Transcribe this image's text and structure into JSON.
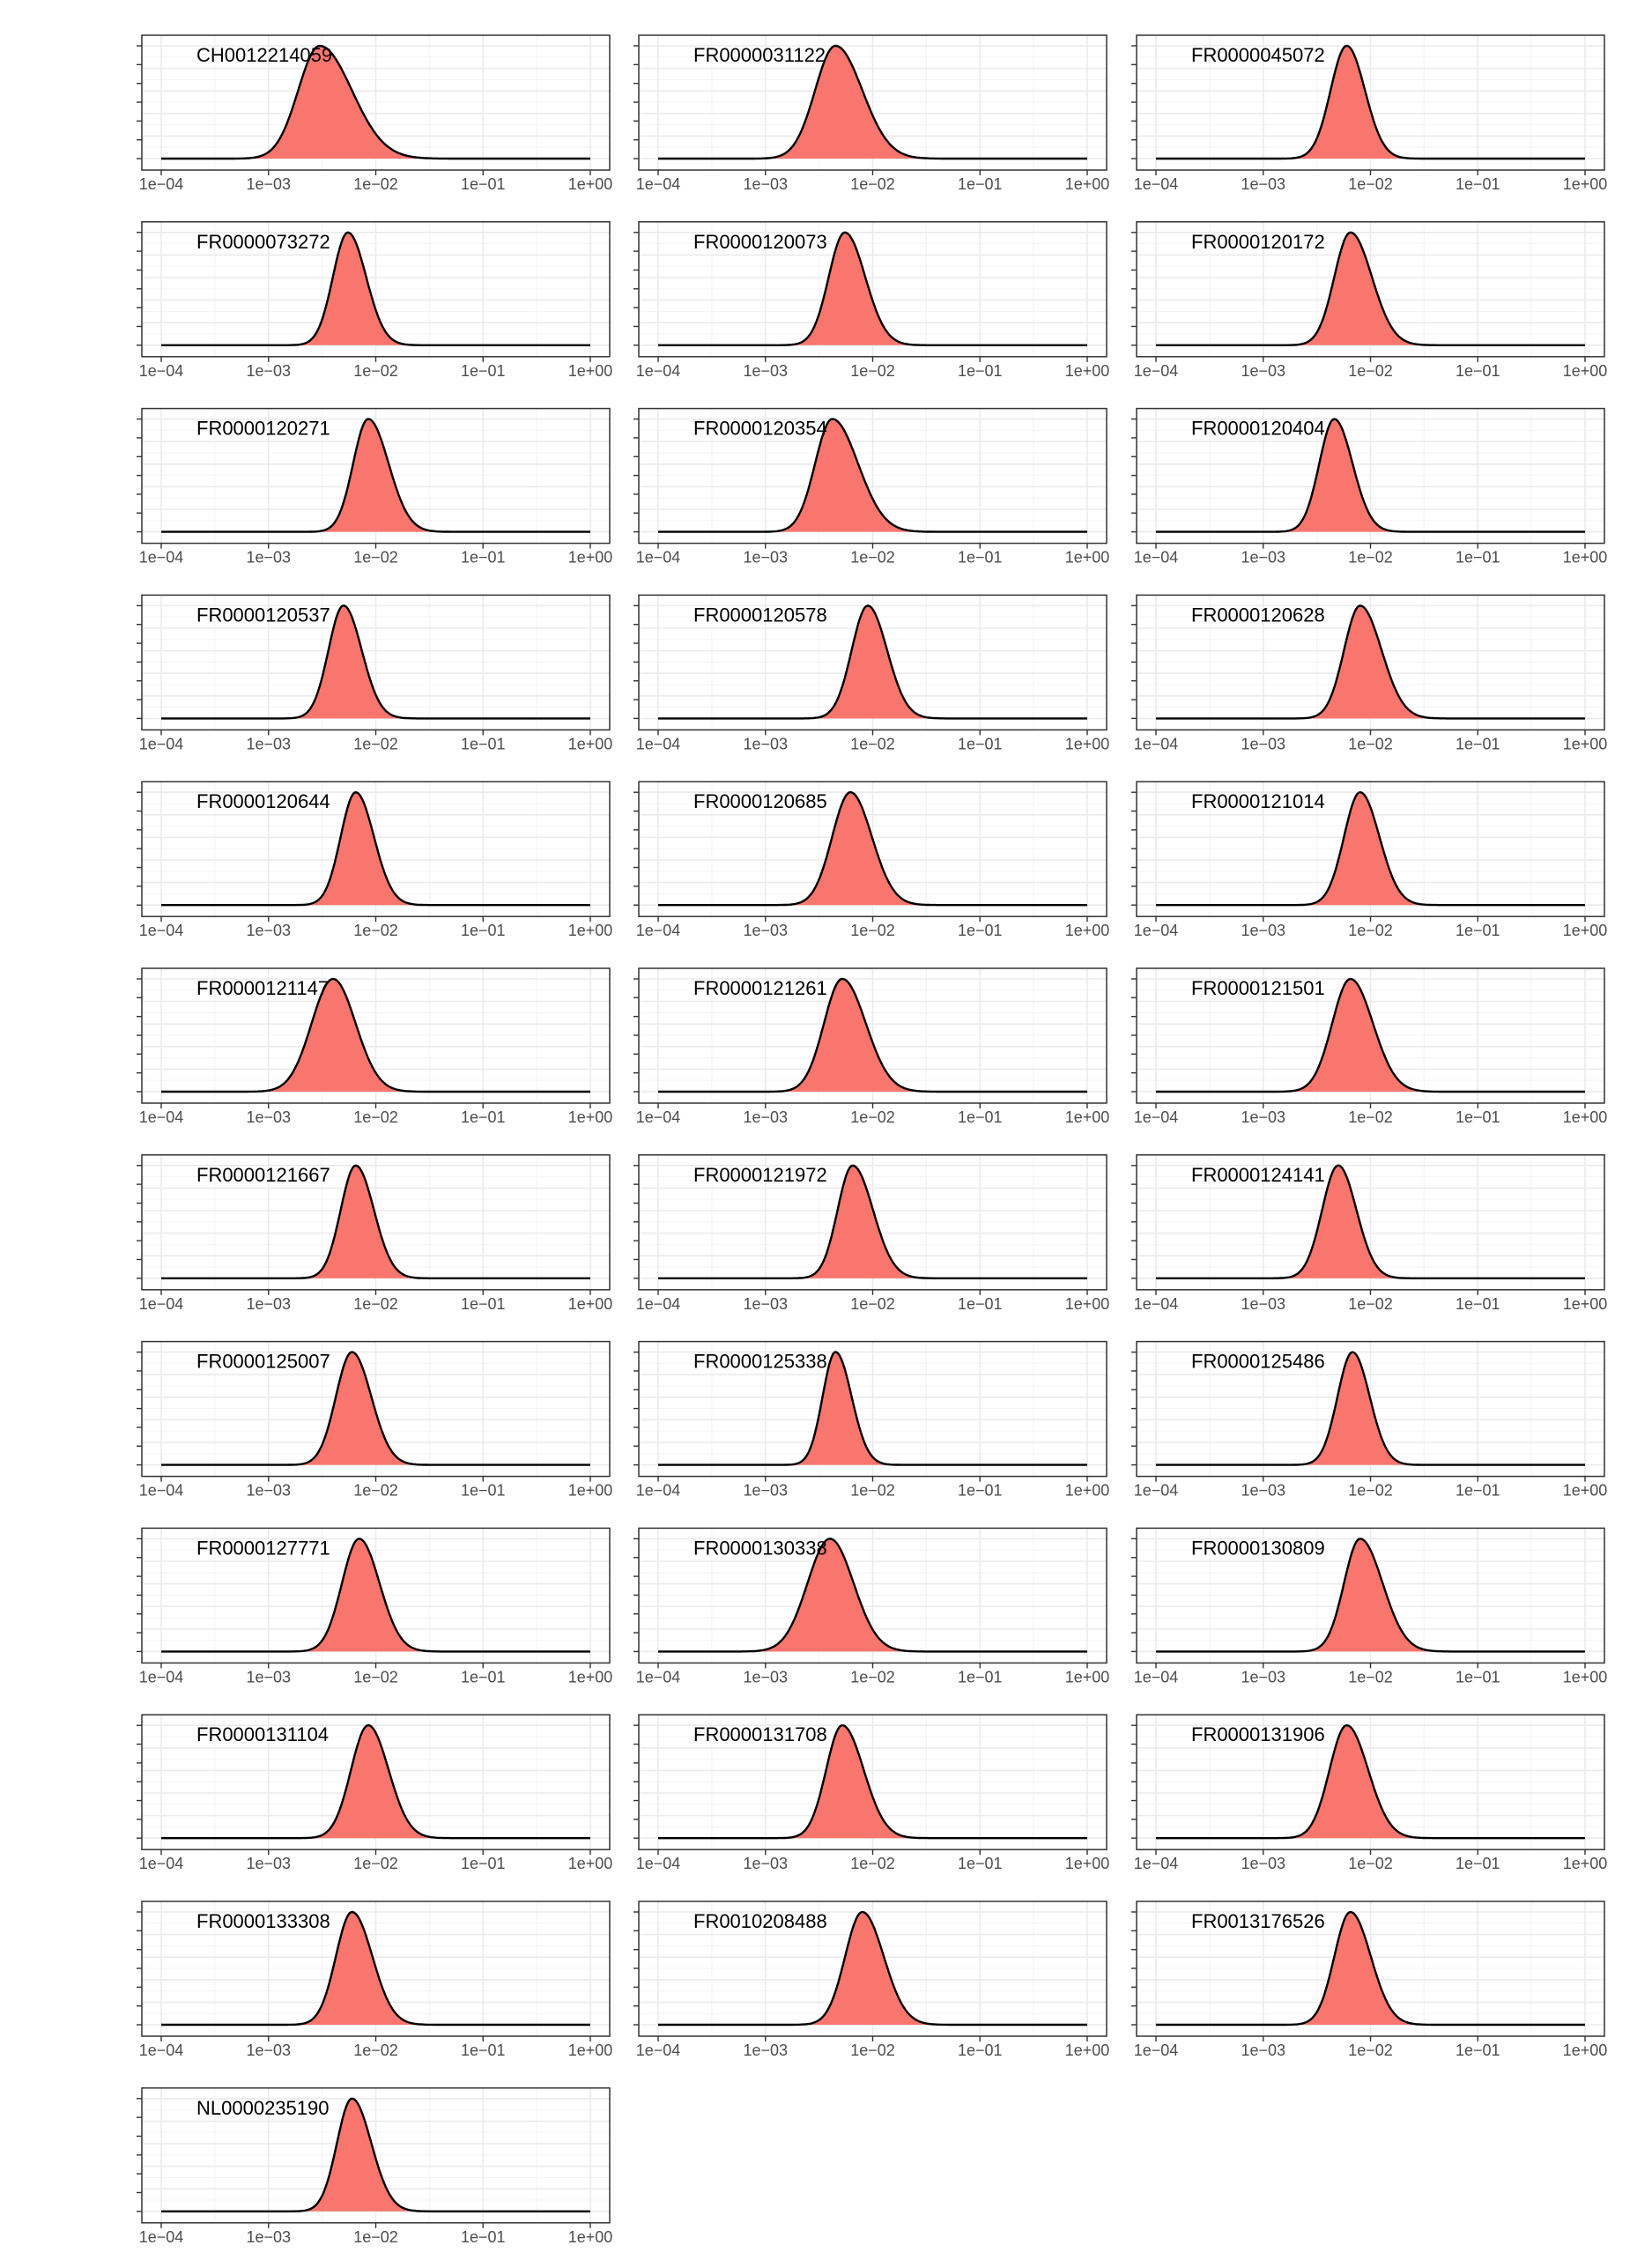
{
  "figure": {
    "background": "#ffffff"
  },
  "style": {
    "fill": "#f8766d",
    "line": "#000000",
    "grid_major": "#ebebeb",
    "grid_minor": "#f5f5f5",
    "tick_text": "#4d4d4d"
  },
  "chart_data": {
    "type": "area",
    "subtype": "density",
    "layout": "facet grid, 3 columns",
    "x_scale": "log10",
    "xlim": [
      0.0001,
      1
    ],
    "x_ticks": [
      0.0001,
      0.001,
      0.01,
      0.1,
      1
    ],
    "x_tick_labels": [
      "1e−04",
      "1e−03",
      "1e−02",
      "1e−01",
      "1e+00"
    ],
    "y_tick_labels_shown": false,
    "grid": true,
    "legend": "none",
    "panels": [
      {
        "label": "CH0012214059",
        "peaks": [
          [
            0.003,
            1.0,
            0.2,
            0.3
          ]
        ]
      },
      {
        "label": "FR0000031122",
        "peaks": [
          [
            0.0045,
            1.0,
            0.19,
            0.25
          ]
        ]
      },
      {
        "label": "FR0000045072",
        "peaks": [
          [
            0.006,
            1.0,
            0.15,
            0.17
          ]
        ]
      },
      {
        "label": "FR0000073272",
        "peaks": [
          [
            0.0055,
            1.0,
            0.14,
            0.17
          ]
        ]
      },
      {
        "label": "FR0000120073",
        "peaks": [
          [
            0.0055,
            1.0,
            0.15,
            0.19
          ]
        ]
      },
      {
        "label": "FR0000120172",
        "peaks": [
          [
            0.0065,
            1.0,
            0.15,
            0.2
          ]
        ]
      },
      {
        "label": "FR0000120271",
        "peaks": [
          [
            0.0085,
            1.0,
            0.14,
            0.19
          ]
        ]
      },
      {
        "label": "FR0000120354",
        "peaks": [
          [
            0.0042,
            1.0,
            0.16,
            0.24
          ]
        ]
      },
      {
        "label": "FR0000120404",
        "peaks": [
          [
            0.0046,
            1.0,
            0.14,
            0.17
          ]
        ]
      },
      {
        "label": "FR0000120537",
        "peaks": [
          [
            0.005,
            1.0,
            0.14,
            0.17
          ]
        ]
      },
      {
        "label": "FR0000120578",
        "peaks": [
          [
            0.009,
            1.0,
            0.15,
            0.18
          ]
        ]
      },
      {
        "label": "FR0000120628",
        "peaks": [
          [
            0.008,
            1.0,
            0.15,
            0.2
          ]
        ]
      },
      {
        "label": "FR0000120644",
        "peaks": [
          [
            0.0065,
            1.0,
            0.14,
            0.17
          ]
        ]
      },
      {
        "label": "FR0000120685",
        "peaks": [
          [
            0.0062,
            1.0,
            0.17,
            0.2
          ]
        ]
      },
      {
        "label": "FR0000121014",
        "peaks": [
          [
            0.008,
            1.0,
            0.15,
            0.18
          ]
        ]
      },
      {
        "label": "FR0000121147",
        "peaks": [
          [
            0.004,
            1.0,
            0.2,
            0.21
          ]
        ]
      },
      {
        "label": "FR0000121261",
        "peaks": [
          [
            0.0052,
            1.0,
            0.17,
            0.22
          ]
        ]
      },
      {
        "label": "FR0000121501",
        "peaks": [
          [
            0.0065,
            1.0,
            0.17,
            0.21
          ]
        ]
      },
      {
        "label": "FR0000121667",
        "peaks": [
          [
            0.0065,
            1.0,
            0.14,
            0.17
          ]
        ]
      },
      {
        "label": "FR0000121972",
        "peaks": [
          [
            0.0065,
            1.0,
            0.14,
            0.19
          ]
        ]
      },
      {
        "label": "FR0000124141",
        "peaks": [
          [
            0.005,
            1.0,
            0.15,
            0.17
          ]
        ]
      },
      {
        "label": "FR0000125007",
        "peaks": [
          [
            0.006,
            1.0,
            0.15,
            0.18
          ]
        ]
      },
      {
        "label": "FR0000125338",
        "peaks": [
          [
            0.0045,
            1.0,
            0.12,
            0.15
          ]
        ]
      },
      {
        "label": "FR0000125486",
        "peaks": [
          [
            0.0068,
            1.0,
            0.14,
            0.16
          ]
        ]
      },
      {
        "label": "FR0000127771",
        "peaks": [
          [
            0.007,
            1.0,
            0.16,
            0.19
          ]
        ]
      },
      {
        "label": "FR0000130338",
        "peaks": [
          [
            0.004,
            1.0,
            0.21,
            0.22
          ]
        ]
      },
      {
        "label": "FR0000130809",
        "peaks": [
          [
            0.008,
            1.0,
            0.15,
            0.21
          ]
        ]
      },
      {
        "label": "FR0000131104",
        "peaks": [
          [
            0.0085,
            1.0,
            0.16,
            0.19
          ]
        ]
      },
      {
        "label": "FR0000131708",
        "peaks": [
          [
            0.0052,
            1.0,
            0.15,
            0.2
          ]
        ]
      },
      {
        "label": "FR0000131906",
        "peaks": [
          [
            0.006,
            1.0,
            0.16,
            0.2
          ]
        ]
      },
      {
        "label": "FR0000133308",
        "peaks": [
          [
            0.006,
            1.0,
            0.15,
            0.19
          ]
        ]
      },
      {
        "label": "FR0010208488",
        "peaks": [
          [
            0.008,
            1.0,
            0.16,
            0.2
          ]
        ]
      },
      {
        "label": "FR0013176526",
        "peaks": [
          [
            0.0065,
            1.0,
            0.15,
            0.19
          ]
        ]
      },
      {
        "label": "NL0000235190",
        "peaks": [
          [
            0.006,
            1.0,
            0.14,
            0.18
          ]
        ]
      }
    ]
  }
}
